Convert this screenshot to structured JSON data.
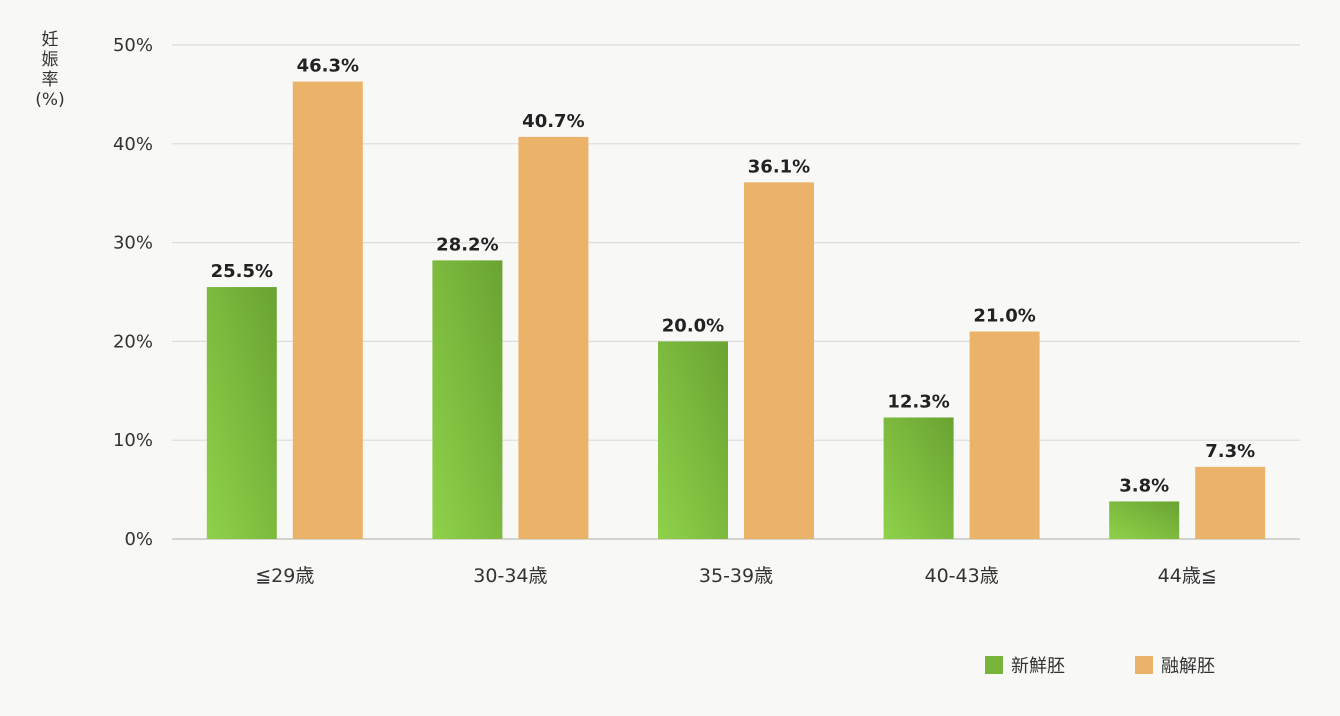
{
  "chart_data": {
    "type": "bar",
    "ylabel": [
      "妊",
      "娠",
      "率",
      "(%)"
    ],
    "ylim": [
      0,
      50
    ],
    "yticks": [
      "0%",
      "10%",
      "20%",
      "30%",
      "40%",
      "50%"
    ],
    "ytick_values": [
      0,
      10,
      20,
      30,
      40,
      50
    ],
    "grid": true,
    "categories": [
      "≦29歳",
      "30-34歳",
      "35-39歳",
      "40-43歳",
      "44歳≦"
    ],
    "series": [
      {
        "name": "新鮮胚",
        "values": [
          25.5,
          28.2,
          20.0,
          12.3,
          3.8
        ],
        "labels": [
          "25.5%",
          "28.2%",
          "20.0%",
          "12.3%",
          "3.8%"
        ],
        "color": "#79b43a"
      },
      {
        "name": "融解胚",
        "values": [
          46.3,
          40.7,
          36.1,
          21.0,
          7.3
        ],
        "labels": [
          "46.3%",
          "40.7%",
          "36.1%",
          "21.0%",
          "7.3%"
        ],
        "color": "#ebb26a"
      }
    ],
    "legend_position": "bottom-right"
  }
}
